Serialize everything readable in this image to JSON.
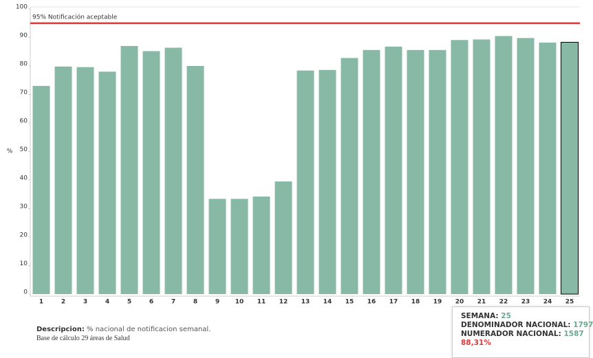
{
  "chart_data": {
    "type": "bar",
    "y_label": "%",
    "categories": [
      "1",
      "2",
      "3",
      "4",
      "5",
      "6",
      "7",
      "8",
      "9",
      "10",
      "11",
      "12",
      "13",
      "14",
      "15",
      "16",
      "17",
      "18",
      "19",
      "20",
      "21",
      "22",
      "23",
      "24",
      "25"
    ],
    "values": [
      73,
      79.8,
      79.6,
      78,
      87,
      85.2,
      86.4,
      80,
      33.4,
      33.4,
      34.2,
      39.5,
      78.4,
      78.6,
      82.8,
      85.6,
      86.8,
      85.6,
      85.6,
      89.1,
      89.3,
      90.5,
      89.8,
      88.2,
      88.31
    ],
    "color": "#88b9a6",
    "highlight_color": "#000000",
    "ylim": [
      0,
      100
    ],
    "yticks": [
      0,
      10,
      20,
      30,
      40,
      50,
      60,
      70,
      80,
      90,
      100
    ],
    "reference_line": {
      "value": 95,
      "label": "95% Notificación aceptable",
      "color": "#e03a3a"
    },
    "grid": false
  },
  "description": {
    "bold": "Descripcion:",
    "text": "% nacional de notificacion semanal.",
    "line2": "Base de cálculo 29 áreas de Salud"
  },
  "tooltip": {
    "semana_label": "SEMANA:",
    "semana": "25",
    "denominador_label": "DENOMINADOR NACIONAL:",
    "denominador": "1797",
    "numerador_label": "NUMERADOR NACIONAL:",
    "numerador": "1587",
    "percent": "88,31%"
  }
}
